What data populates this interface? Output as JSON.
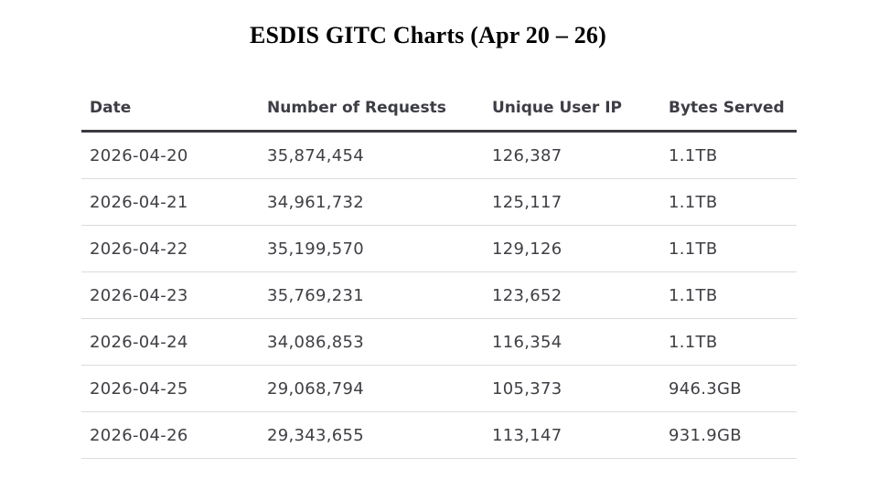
{
  "title": "ESDIS GITC Charts (Apr 20 – 26)",
  "chart_data": {
    "type": "table",
    "title": "ESDIS GITC Charts (Apr 20 – 26)",
    "columns": [
      "Date",
      "Number of Requests",
      "Unique User IP",
      "Bytes Served"
    ],
    "rows": [
      [
        "2026-04-20",
        "35,874,454",
        "126,387",
        "1.1TB"
      ],
      [
        "2026-04-21",
        "34,961,732",
        "125,117",
        "1.1TB"
      ],
      [
        "2026-04-22",
        "35,199,570",
        "129,126",
        "1.1TB"
      ],
      [
        "2026-04-23",
        "35,769,231",
        "123,652",
        "1.1TB"
      ],
      [
        "2026-04-24",
        "34,086,853",
        "116,354",
        "1.1TB"
      ],
      [
        "2026-04-25",
        "29,068,794",
        "105,373",
        "946.3GB"
      ],
      [
        "2026-04-26",
        "29,343,655",
        "113,147",
        "931.9GB"
      ]
    ]
  }
}
